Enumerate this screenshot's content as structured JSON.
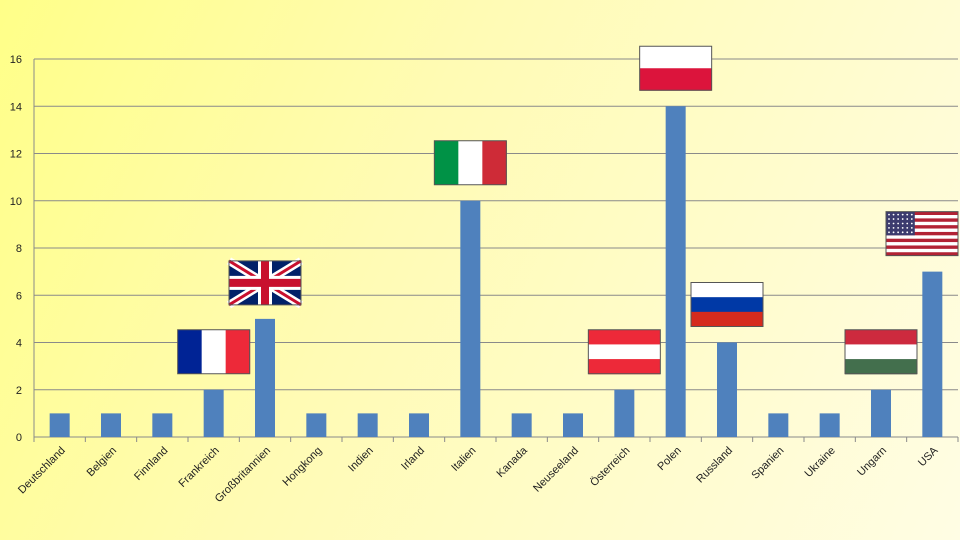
{
  "chart_data": {
    "type": "bar",
    "title": "",
    "xlabel": "",
    "ylabel": "",
    "ylim": [
      0,
      16
    ],
    "yticks": [
      0,
      2,
      4,
      6,
      8,
      10,
      12,
      14,
      16
    ],
    "grid": true,
    "legend": "none",
    "bar_color": "#4f81bd",
    "categories": [
      "Deutschland",
      "Belgien",
      "Finnland",
      "Frankreich",
      "Großbritannien",
      "Hongkong",
      "Indien",
      "Irland",
      "Italien",
      "Kanada",
      "Neuseeland",
      "Österreich",
      "Polen",
      "Russland",
      "Spanien",
      "Ukraine",
      "Ungarn",
      "USA"
    ],
    "values": [
      1,
      1,
      1,
      2,
      5,
      1,
      1,
      1,
      10,
      1,
      1,
      2,
      14,
      4,
      1,
      1,
      2,
      7
    ],
    "flags": [
      {
        "category": "Frankreich",
        "icon": "france-flag-icon",
        "colors": [
          "#002395",
          "#ffffff",
          "#ed2939"
        ],
        "stripes": "vertical"
      },
      {
        "category": "Großbritannien",
        "icon": "uk-flag-icon",
        "colors": [
          "#012169",
          "#ffffff",
          "#c8102e"
        ],
        "stripes": "union"
      },
      {
        "category": "Italien",
        "icon": "italy-flag-icon",
        "colors": [
          "#009246",
          "#ffffff",
          "#ce2b37"
        ],
        "stripes": "vertical"
      },
      {
        "category": "Österreich",
        "icon": "austria-flag-icon",
        "colors": [
          "#ed2939",
          "#ffffff",
          "#ed2939"
        ],
        "stripes": "horizontal"
      },
      {
        "category": "Polen",
        "icon": "poland-flag-icon",
        "colors": [
          "#ffffff",
          "#dc143c"
        ],
        "stripes": "horizontal"
      },
      {
        "category": "Russland",
        "icon": "russia-flag-icon",
        "colors": [
          "#ffffff",
          "#0039a6",
          "#d52b1e"
        ],
        "stripes": "horizontal"
      },
      {
        "category": "Ungarn",
        "icon": "hungary-flag-icon",
        "colors": [
          "#cd2a3e",
          "#ffffff",
          "#436f4d"
        ],
        "stripes": "horizontal"
      },
      {
        "category": "USA",
        "icon": "usa-flag-icon",
        "colors": [
          "#b22234",
          "#ffffff",
          "#3c3b6e"
        ],
        "stripes": "stars"
      }
    ]
  }
}
